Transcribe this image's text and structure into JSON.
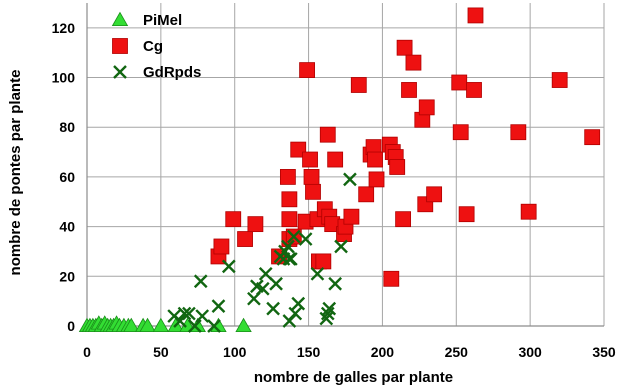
{
  "chart_data": {
    "type": "scatter",
    "xlabel": "nombre de galles par plante",
    "ylabel": "nombre de pontes par plante",
    "xlim": [
      0,
      350
    ],
    "ylim": [
      0,
      130
    ],
    "xticks": [
      0,
      50,
      100,
      150,
      200,
      250,
      300,
      350
    ],
    "yticks": [
      0,
      20,
      40,
      60,
      80,
      100,
      120
    ],
    "grid": true,
    "legend_position": "top-left",
    "series": [
      {
        "name": "PiMel",
        "marker": "triangle",
        "color": "#33dd33",
        "points": [
          [
            0,
            0
          ],
          [
            2,
            0
          ],
          [
            4,
            0
          ],
          [
            6,
            0
          ],
          [
            8,
            1
          ],
          [
            10,
            0
          ],
          [
            12,
            1
          ],
          [
            14,
            0
          ],
          [
            16,
            0
          ],
          [
            18,
            0
          ],
          [
            20,
            1
          ],
          [
            22,
            0
          ],
          [
            25,
            0
          ],
          [
            28,
            0
          ],
          [
            30,
            0
          ],
          [
            38,
            0
          ],
          [
            41,
            0
          ],
          [
            50,
            0
          ],
          [
            60,
            0
          ],
          [
            68,
            0
          ],
          [
            75,
            0
          ],
          [
            89,
            0
          ],
          [
            106,
            0
          ]
        ]
      },
      {
        "name": "Cg",
        "marker": "square",
        "color": "#ee1111",
        "points": [
          [
            89,
            28
          ],
          [
            91,
            32
          ],
          [
            99,
            43
          ],
          [
            107,
            35
          ],
          [
            114,
            41
          ],
          [
            130,
            28
          ],
          [
            136,
            60
          ],
          [
            137,
            51
          ],
          [
            137,
            43
          ],
          [
            137,
            35
          ],
          [
            140,
            36
          ],
          [
            143,
            71
          ],
          [
            148,
            42
          ],
          [
            149,
            103
          ],
          [
            151,
            67
          ],
          [
            152,
            60
          ],
          [
            153,
            54
          ],
          [
            156,
            43
          ],
          [
            157,
            26
          ],
          [
            160,
            26
          ],
          [
            161,
            47
          ],
          [
            163,
            77
          ],
          [
            164,
            44
          ],
          [
            166,
            41
          ],
          [
            168,
            67
          ],
          [
            174,
            37
          ],
          [
            175,
            40
          ],
          [
            179,
            44
          ],
          [
            184,
            97
          ],
          [
            189,
            53
          ],
          [
            192,
            69
          ],
          [
            194,
            72
          ],
          [
            195,
            67
          ],
          [
            196,
            59
          ],
          [
            205,
            73
          ],
          [
            206,
            19
          ],
          [
            207,
            70
          ],
          [
            209,
            68
          ],
          [
            210,
            64
          ],
          [
            214,
            43
          ],
          [
            215,
            112
          ],
          [
            218,
            95
          ],
          [
            221,
            106
          ],
          [
            227,
            83
          ],
          [
            229,
            49
          ],
          [
            230,
            88
          ],
          [
            235,
            53
          ],
          [
            252,
            98
          ],
          [
            253,
            78
          ],
          [
            257,
            45
          ],
          [
            262,
            95
          ],
          [
            263,
            125
          ],
          [
            292,
            78
          ],
          [
            299,
            46
          ],
          [
            320,
            99
          ],
          [
            342,
            76
          ]
        ]
      },
      {
        "name": "GdRpds",
        "marker": "x",
        "color": "#116611",
        "points": [
          [
            59,
            4
          ],
          [
            63,
            2
          ],
          [
            66,
            5
          ],
          [
            69,
            5
          ],
          [
            73,
            0
          ],
          [
            77,
            18
          ],
          [
            78,
            4
          ],
          [
            86,
            0
          ],
          [
            89,
            8
          ],
          [
            96,
            24
          ],
          [
            113,
            11
          ],
          [
            115,
            16
          ],
          [
            119,
            15
          ],
          [
            121,
            21
          ],
          [
            126,
            7
          ],
          [
            128,
            17
          ],
          [
            131,
            28
          ],
          [
            133,
            27
          ],
          [
            134,
            30
          ],
          [
            136,
            32
          ],
          [
            137,
            2
          ],
          [
            137,
            27
          ],
          [
            138,
            27
          ],
          [
            140,
            36
          ],
          [
            141,
            5
          ],
          [
            143,
            9
          ],
          [
            148,
            35
          ],
          [
            156,
            21
          ],
          [
            162,
            3
          ],
          [
            163,
            5
          ],
          [
            164,
            7
          ],
          [
            168,
            17
          ],
          [
            172,
            32
          ],
          [
            178,
            59
          ]
        ]
      }
    ]
  }
}
